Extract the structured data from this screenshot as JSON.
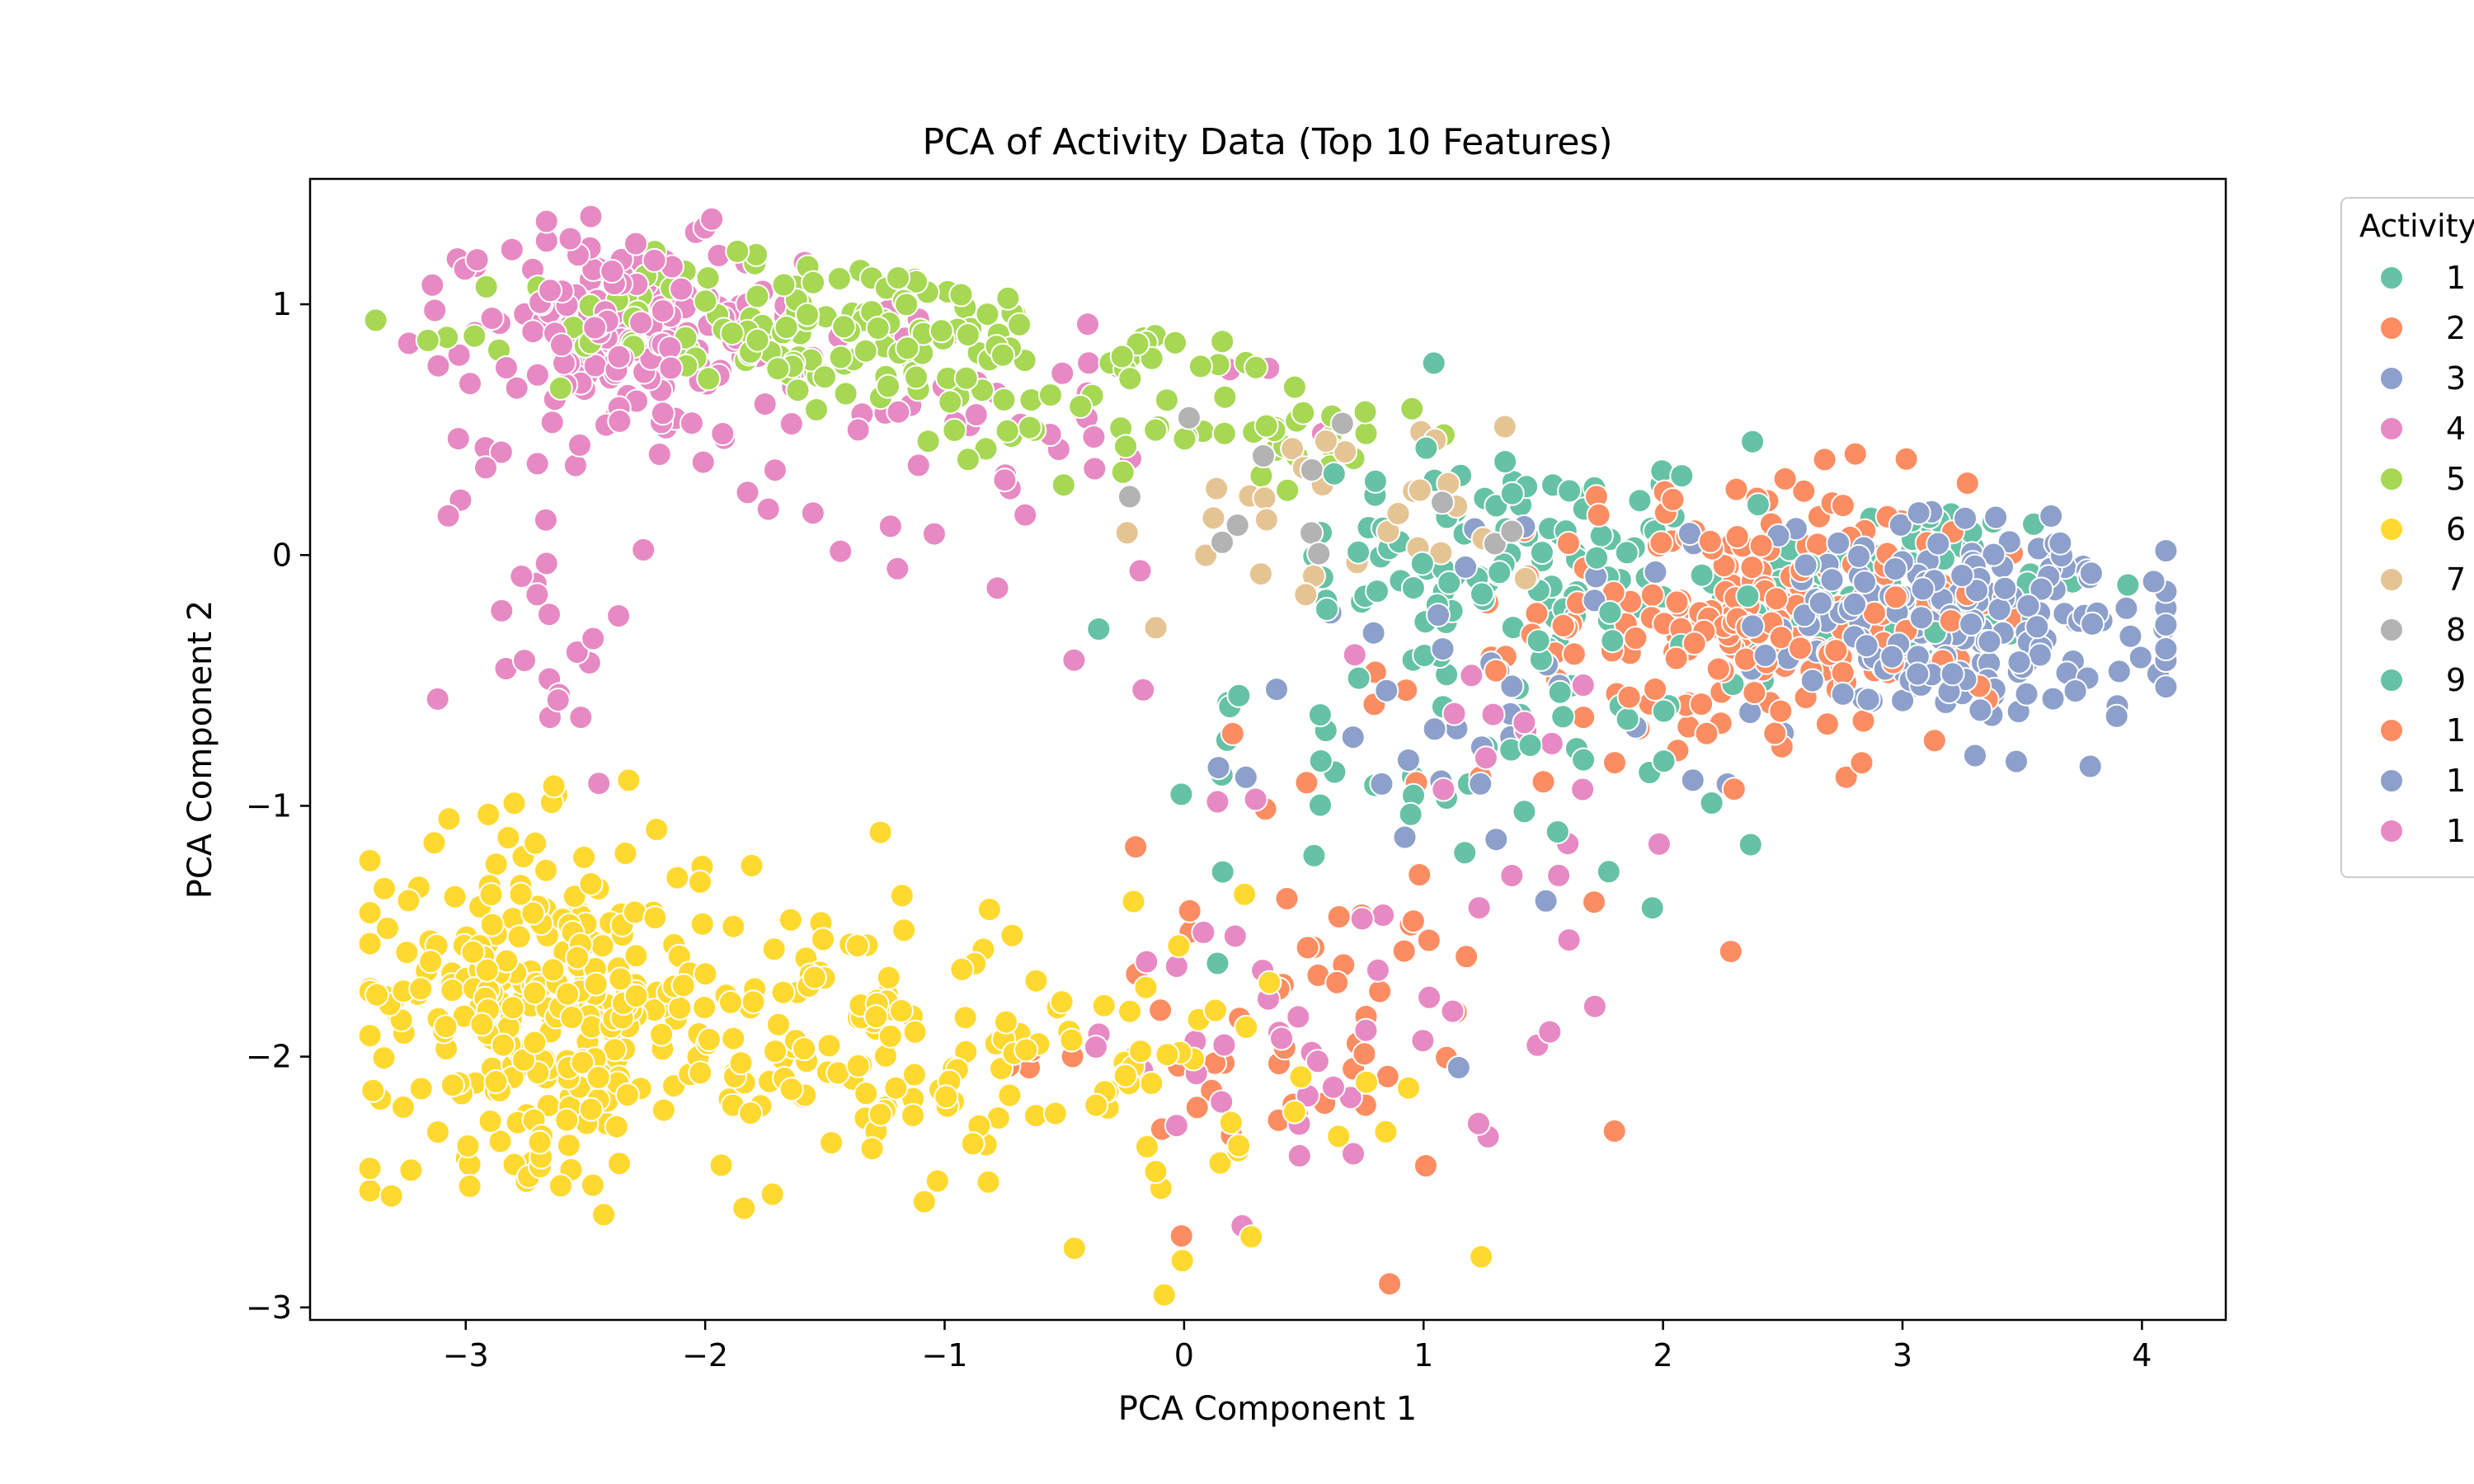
{
  "chart_data": {
    "type": "scatter",
    "title": "PCA of Activity Data (Top 10 Features)",
    "xlabel": "PCA Component 1",
    "ylabel": "PCA Component 2",
    "xlim": [
      -3.65,
      4.35
    ],
    "ylim": [
      -3.05,
      1.5
    ],
    "x_ticks": [
      -3,
      -2,
      -1,
      0,
      1,
      2,
      3,
      4
    ],
    "y_ticks": [
      -3,
      -2,
      -1,
      0,
      1
    ],
    "x_tick_labels": [
      "−3",
      "−2",
      "−1",
      "0",
      "1",
      "2",
      "3",
      "4"
    ],
    "y_tick_labels": [
      "−3",
      "−2",
      "−1",
      "0",
      "1"
    ],
    "grid": false,
    "legend": {
      "title": "Activity",
      "placement": "outside-right",
      "entries": [
        "1",
        "2",
        "3",
        "4",
        "5",
        "6",
        "7",
        "8",
        "9",
        "1",
        "1",
        "1"
      ]
    },
    "series": [
      {
        "name": "1",
        "color": "#66c2a5",
        "clusters": [
          {
            "cx": 1.4,
            "cy": 0.0,
            "sx": 0.45,
            "sy": 0.22,
            "n": 80
          },
          {
            "cx": 2.9,
            "cy": -0.15,
            "sx": 0.45,
            "sy": 0.2,
            "n": 100
          },
          {
            "cx": 1.0,
            "cy": -0.7,
            "sx": 0.55,
            "sy": 0.4,
            "n": 40
          }
        ]
      },
      {
        "name": "2",
        "color": "#fc8d62",
        "clusters": [
          {
            "cx": 2.4,
            "cy": -0.2,
            "sx": 0.45,
            "sy": 0.25,
            "n": 160
          },
          {
            "cx": 0.4,
            "cy": -1.9,
            "sx": 0.5,
            "sy": 0.35,
            "n": 50
          },
          {
            "cx": 1.2,
            "cy": -0.95,
            "sx": 0.6,
            "sy": 0.3,
            "n": 20
          }
        ]
      },
      {
        "name": "3",
        "color": "#8da0cb",
        "clusters": [
          {
            "cx": 3.3,
            "cy": -0.25,
            "sx": 0.45,
            "sy": 0.2,
            "n": 150
          },
          {
            "cx": 1.4,
            "cy": -0.5,
            "sx": 0.5,
            "sy": 0.4,
            "n": 40
          }
        ]
      },
      {
        "name": "4",
        "color": "#e78ac3",
        "clusters": [
          {
            "cx": -2.3,
            "cy": 0.85,
            "sx": 0.35,
            "sy": 0.2,
            "n": 150
          },
          {
            "cx": -1.2,
            "cy": 0.5,
            "sx": 0.8,
            "sy": 0.35,
            "n": 60
          },
          {
            "cx": -2.7,
            "cy": -0.2,
            "sx": 0.2,
            "sy": 0.35,
            "n": 25
          },
          {
            "cx": 0.6,
            "cy": -1.9,
            "sx": 0.5,
            "sy": 0.35,
            "n": 40
          },
          {
            "cx": 1.2,
            "cy": -1.0,
            "sx": 0.6,
            "sy": 0.35,
            "n": 20
          }
        ]
      },
      {
        "name": "5",
        "color": "#a6d854",
        "clusters": [
          {
            "cx": -1.5,
            "cy": 0.9,
            "sx": 0.6,
            "sy": 0.15,
            "n": 140
          },
          {
            "cx": -0.2,
            "cy": 0.6,
            "sx": 0.5,
            "sy": 0.15,
            "n": 50
          },
          {
            "cx": 0.6,
            "cy": 0.45,
            "sx": 0.3,
            "sy": 0.1,
            "n": 15
          }
        ]
      },
      {
        "name": "6",
        "color": "#ffd92f",
        "clusters": [
          {
            "cx": -2.7,
            "cy": -1.75,
            "sx": 0.35,
            "sy": 0.33,
            "n": 260
          },
          {
            "cx": -1.6,
            "cy": -1.9,
            "sx": 0.55,
            "sy": 0.3,
            "n": 130
          },
          {
            "cx": -0.5,
            "cy": -2.1,
            "sx": 0.5,
            "sy": 0.3,
            "n": 50
          },
          {
            "cx": 0.5,
            "cy": -2.3,
            "sx": 0.5,
            "sy": 0.3,
            "n": 15
          }
        ]
      },
      {
        "name": "7",
        "color": "#e5c494",
        "clusters": [
          {
            "cx": 0.6,
            "cy": 0.15,
            "sx": 0.45,
            "sy": 0.2,
            "n": 30
          }
        ]
      },
      {
        "name": "8",
        "color": "#b3b3b3",
        "clusters": [
          {
            "cx": 0.7,
            "cy": 0.2,
            "sx": 0.5,
            "sy": 0.25,
            "n": 12
          }
        ]
      },
      {
        "name": "9",
        "color": "#66c2a5",
        "clusters": [
          {
            "cx": 1.6,
            "cy": -0.3,
            "sx": 0.6,
            "sy": 0.45,
            "n": 40
          }
        ]
      },
      {
        "name": "1",
        "color": "#fc8d62",
        "clusters": [
          {
            "cx": 2.5,
            "cy": -0.4,
            "sx": 0.4,
            "sy": 0.25,
            "n": 50
          }
        ]
      },
      {
        "name": "1",
        "color": "#8da0cb",
        "clusters": [
          {
            "cx": 3.2,
            "cy": -0.35,
            "sx": 0.4,
            "sy": 0.2,
            "n": 40
          }
        ]
      },
      {
        "name": "1",
        "color": "#e78ac3",
        "clusters": [
          {
            "cx": -2.5,
            "cy": 1.0,
            "sx": 0.25,
            "sy": 0.15,
            "n": 40
          }
        ]
      }
    ]
  }
}
